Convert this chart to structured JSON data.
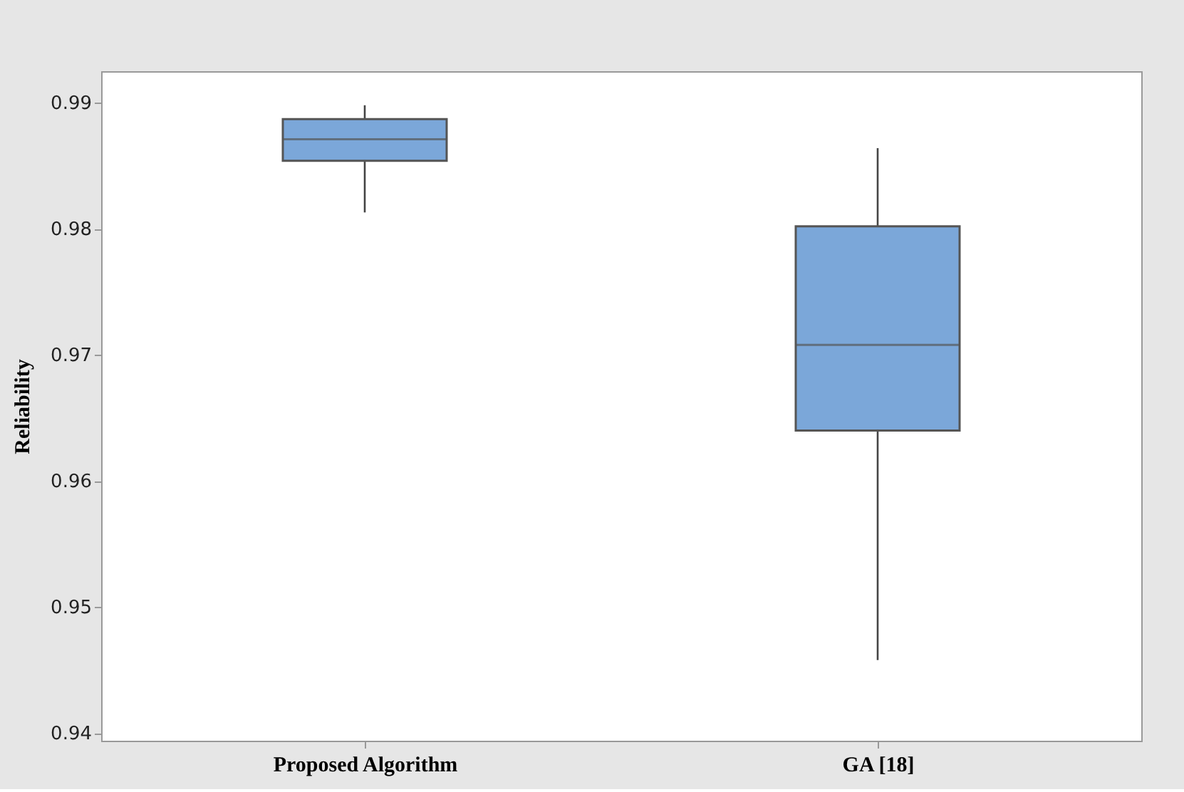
{
  "chart_data": {
    "type": "box",
    "ylabel": "Reliability",
    "categories": [
      "Proposed Algorithm",
      "GA [18]"
    ],
    "series": [
      {
        "color": "#7ba7d9",
        "boxes": [
          {
            "low": 0.9813,
            "q1": 0.9854,
            "median": 0.9871,
            "q3": 0.9887,
            "high": 0.9898
          },
          {
            "low": 0.9458,
            "q1": 0.964,
            "median": 0.9708,
            "q3": 0.9802,
            "high": 0.9864
          }
        ]
      }
    ],
    "ylim": [
      0.9394,
      0.9925
    ],
    "yticks": [
      0.94,
      0.95,
      0.96,
      0.97,
      0.98,
      0.99
    ],
    "grid": false
  }
}
